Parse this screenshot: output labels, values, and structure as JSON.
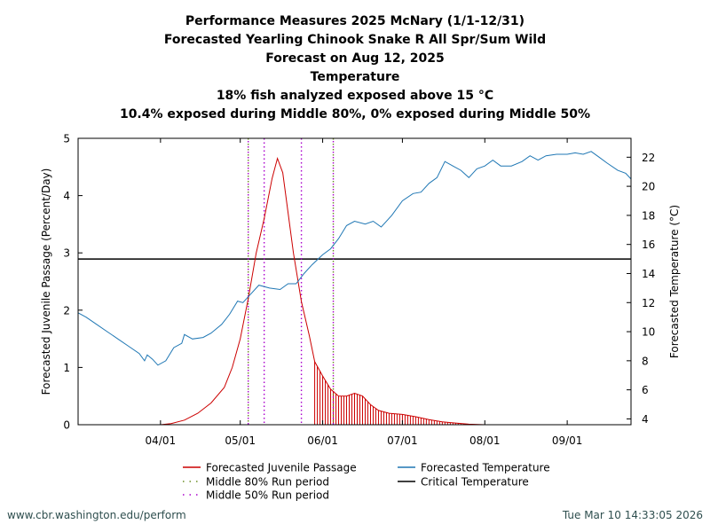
{
  "title_lines": [
    "Performance Measures 2025 McNary (1/1-12/31)",
    "Forecasted Yearling Chinook Snake R All Spr/Sum Wild",
    "Forecast on Aug 12, 2025",
    "Temperature",
    "18% fish analyzed exposed above 15 °C",
    "10.4% exposed during Middle 80%, 0% exposed during Middle 50%"
  ],
  "footer": {
    "left": "www.cbr.washington.edu/perform",
    "right": "Tue Mar 10 14:33:05 2026"
  },
  "chart_data": {
    "type": "line",
    "ylabel": "Forecasted Juvenile Passage (Percent/Day)",
    "y2label": "Forecasted Temperature (°C)",
    "xlim": [
      "2025-03-01",
      "2025-09-25"
    ],
    "ylim": [
      0,
      5
    ],
    "y2lim": [
      3.6,
      23.3
    ],
    "x_ticks": [
      "04/01",
      "05/01",
      "06/01",
      "07/01",
      "08/01",
      "09/01"
    ],
    "x_tick_dates": [
      "2025-04-01",
      "2025-05-01",
      "2025-06-01",
      "2025-07-01",
      "2025-08-01",
      "2025-09-01"
    ],
    "y_ticks": [
      0,
      1,
      2,
      3,
      4,
      5
    ],
    "y2_ticks": [
      4,
      6,
      8,
      10,
      12,
      14,
      16,
      18,
      20,
      22
    ],
    "critical_temperature": 15,
    "middle_80_period": [
      "2025-05-04",
      "2025-06-05"
    ],
    "middle_50_period": [
      "2025-05-10",
      "2025-05-24"
    ],
    "hatched_start": "2025-05-29",
    "legend": [
      {
        "label": "Forecasted Juvenile Passage",
        "color": "#cc0000",
        "style": "solid"
      },
      {
        "label": "Middle 80% Run period",
        "color": "#6b8e23",
        "style": "dotted"
      },
      {
        "label": "Middle 50% Run period",
        "color": "#aa00cc",
        "style": "dotted"
      },
      {
        "label": "Forecasted Temperature",
        "color": "#1f77b4",
        "style": "solid"
      },
      {
        "label": "Critical Temperature",
        "color": "#000000",
        "style": "solid"
      }
    ],
    "series": [
      {
        "name": "Forecasted Juvenile Passage",
        "color": "#cc0000",
        "points": [
          [
            "2025-03-01",
            0
          ],
          [
            "2025-04-01",
            0
          ],
          [
            "2025-04-05",
            0.02
          ],
          [
            "2025-04-10",
            0.08
          ],
          [
            "2025-04-15",
            0.2
          ],
          [
            "2025-04-20",
            0.38
          ],
          [
            "2025-04-25",
            0.65
          ],
          [
            "2025-04-28",
            1.0
          ],
          [
            "2025-05-01",
            1.5
          ],
          [
            "2025-05-04",
            2.2
          ],
          [
            "2025-05-07",
            3.0
          ],
          [
            "2025-05-10",
            3.6
          ],
          [
            "2025-05-13",
            4.3
          ],
          [
            "2025-05-15",
            4.65
          ],
          [
            "2025-05-17",
            4.4
          ],
          [
            "2025-05-19",
            3.7
          ],
          [
            "2025-05-21",
            3.0
          ],
          [
            "2025-05-24",
            2.15
          ],
          [
            "2025-05-27",
            1.55
          ],
          [
            "2025-05-29",
            1.1
          ],
          [
            "2025-06-01",
            0.85
          ],
          [
            "2025-06-04",
            0.62
          ],
          [
            "2025-06-07",
            0.5
          ],
          [
            "2025-06-10",
            0.5
          ],
          [
            "2025-06-13",
            0.55
          ],
          [
            "2025-06-16",
            0.5
          ],
          [
            "2025-06-19",
            0.35
          ],
          [
            "2025-06-22",
            0.25
          ],
          [
            "2025-06-26",
            0.2
          ],
          [
            "2025-07-01",
            0.18
          ],
          [
            "2025-07-06",
            0.14
          ],
          [
            "2025-07-11",
            0.09
          ],
          [
            "2025-07-16",
            0.05
          ],
          [
            "2025-07-21",
            0.03
          ],
          [
            "2025-07-26",
            0.01
          ],
          [
            "2025-08-01",
            0
          ],
          [
            "2025-09-25",
            0
          ]
        ]
      },
      {
        "name": "Forecasted Temperature",
        "color": "#1f77b4",
        "axis": "y2",
        "points": [
          [
            "2025-03-01",
            11.3
          ],
          [
            "2025-03-04",
            11.0
          ],
          [
            "2025-03-08",
            10.5
          ],
          [
            "2025-03-12",
            10.0
          ],
          [
            "2025-03-16",
            9.5
          ],
          [
            "2025-03-20",
            9.0
          ],
          [
            "2025-03-24",
            8.5
          ],
          [
            "2025-03-26",
            8.0
          ],
          [
            "2025-03-27",
            8.4
          ],
          [
            "2025-03-29",
            8.1
          ],
          [
            "2025-03-31",
            7.7
          ],
          [
            "2025-04-03",
            8.0
          ],
          [
            "2025-04-06",
            8.9
          ],
          [
            "2025-04-09",
            9.2
          ],
          [
            "2025-04-10",
            9.8
          ],
          [
            "2025-04-13",
            9.5
          ],
          [
            "2025-04-17",
            9.6
          ],
          [
            "2025-04-20",
            9.9
          ],
          [
            "2025-04-24",
            10.5
          ],
          [
            "2025-04-27",
            11.2
          ],
          [
            "2025-04-30",
            12.1
          ],
          [
            "2025-05-02",
            12.0
          ],
          [
            "2025-05-05",
            12.6
          ],
          [
            "2025-05-08",
            13.2
          ],
          [
            "2025-05-12",
            13.0
          ],
          [
            "2025-05-16",
            12.9
          ],
          [
            "2025-05-19",
            13.3
          ],
          [
            "2025-05-22",
            13.3
          ],
          [
            "2025-05-25",
            14.0
          ],
          [
            "2025-05-28",
            14.6
          ],
          [
            "2025-06-01",
            15.3
          ],
          [
            "2025-06-04",
            15.7
          ],
          [
            "2025-06-07",
            16.4
          ],
          [
            "2025-06-10",
            17.3
          ],
          [
            "2025-06-13",
            17.6
          ],
          [
            "2025-06-17",
            17.4
          ],
          [
            "2025-06-20",
            17.6
          ],
          [
            "2025-06-23",
            17.2
          ],
          [
            "2025-06-27",
            18.0
          ],
          [
            "2025-07-01",
            19.0
          ],
          [
            "2025-07-05",
            19.5
          ],
          [
            "2025-07-08",
            19.6
          ],
          [
            "2025-07-11",
            20.2
          ],
          [
            "2025-07-14",
            20.6
          ],
          [
            "2025-07-17",
            21.7
          ],
          [
            "2025-07-20",
            21.4
          ],
          [
            "2025-07-23",
            21.1
          ],
          [
            "2025-07-26",
            20.6
          ],
          [
            "2025-07-29",
            21.2
          ],
          [
            "2025-08-01",
            21.4
          ],
          [
            "2025-08-04",
            21.8
          ],
          [
            "2025-08-07",
            21.4
          ],
          [
            "2025-08-11",
            21.4
          ],
          [
            "2025-08-15",
            21.7
          ],
          [
            "2025-08-18",
            22.1
          ],
          [
            "2025-08-21",
            21.8
          ],
          [
            "2025-08-24",
            22.1
          ],
          [
            "2025-08-28",
            22.2
          ],
          [
            "2025-09-01",
            22.2
          ],
          [
            "2025-09-04",
            22.3
          ],
          [
            "2025-09-07",
            22.2
          ],
          [
            "2025-09-10",
            22.4
          ],
          [
            "2025-09-13",
            22.0
          ],
          [
            "2025-09-16",
            21.6
          ],
          [
            "2025-09-20",
            21.1
          ],
          [
            "2025-09-23",
            20.9
          ],
          [
            "2025-09-25",
            20.5
          ]
        ]
      }
    ]
  }
}
